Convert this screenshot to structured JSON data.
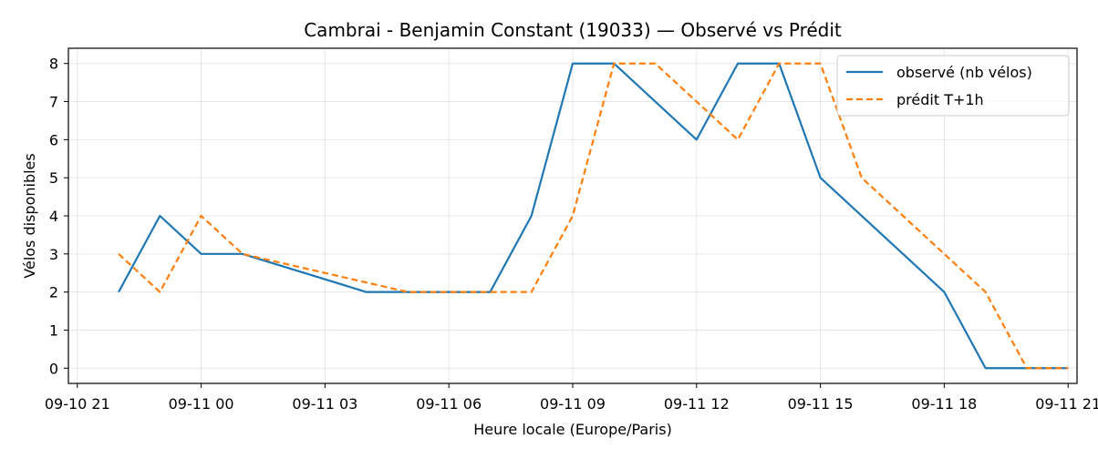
{
  "chart_data": {
    "type": "line",
    "title": "Cambrai - Benjamin Constant (19033) — Observé vs Prédit",
    "xlabel": "Heure locale (Europe/Paris)",
    "ylabel": "Vélos disponibles",
    "x_ticks": [
      "09-10 21",
      "09-11 00",
      "09-11 03",
      "09-11 06",
      "09-11 09",
      "09-11 12",
      "09-11 15",
      "09-11 18",
      "09-11 21"
    ],
    "x_tick_times": [
      "2025-09-10 21:00",
      "2025-09-11 00:00",
      "2025-09-11 03:00",
      "2025-09-11 06:00",
      "2025-09-11 09:00",
      "2025-09-11 12:00",
      "2025-09-11 15:00",
      "2025-09-11 18:00",
      "2025-09-11 21:00"
    ],
    "xlim": [
      "2025-09-10 20:47",
      "2025-09-11 21:13"
    ],
    "ylim": [
      -0.4,
      8.4
    ],
    "y_ticks": [
      0,
      1,
      2,
      3,
      4,
      5,
      6,
      7,
      8
    ],
    "grid": true,
    "legend_position": "top-right",
    "series": [
      {
        "name": "observé (nb vélos)",
        "color": "#1f77b4",
        "style": "solid",
        "points": [
          [
            "2025-09-10 22:00",
            2
          ],
          [
            "2025-09-10 23:00",
            4
          ],
          [
            "2025-09-11 00:00",
            3
          ],
          [
            "2025-09-11 01:00",
            3
          ],
          [
            "2025-09-11 04:00",
            2
          ],
          [
            "2025-09-11 05:00",
            2
          ],
          [
            "2025-09-11 07:00",
            2
          ],
          [
            "2025-09-11 08:00",
            4
          ],
          [
            "2025-09-11 09:00",
            8
          ],
          [
            "2025-09-11 10:00",
            8
          ],
          [
            "2025-09-11 12:00",
            6
          ],
          [
            "2025-09-11 13:00",
            8
          ],
          [
            "2025-09-11 14:00",
            8
          ],
          [
            "2025-09-11 15:00",
            5
          ],
          [
            "2025-09-11 18:00",
            2
          ],
          [
            "2025-09-11 19:00",
            0
          ],
          [
            "2025-09-11 21:00",
            0
          ]
        ]
      },
      {
        "name": "prédit T+1h",
        "color": "#ff7f0e",
        "style": "dashed",
        "points": [
          [
            "2025-09-10 22:00",
            3
          ],
          [
            "2025-09-10 23:00",
            2
          ],
          [
            "2025-09-11 00:00",
            4
          ],
          [
            "2025-09-11 01:00",
            3
          ],
          [
            "2025-09-11 05:00",
            2
          ],
          [
            "2025-09-11 08:00",
            2
          ],
          [
            "2025-09-11 09:00",
            4
          ],
          [
            "2025-09-11 10:00",
            8
          ],
          [
            "2025-09-11 11:00",
            8
          ],
          [
            "2025-09-11 13:00",
            6
          ],
          [
            "2025-09-11 14:00",
            8
          ],
          [
            "2025-09-11 15:00",
            8
          ],
          [
            "2025-09-11 16:00",
            5
          ],
          [
            "2025-09-11 19:00",
            2
          ],
          [
            "2025-09-11 20:00",
            0
          ],
          [
            "2025-09-11 21:00",
            0
          ]
        ]
      }
    ]
  }
}
